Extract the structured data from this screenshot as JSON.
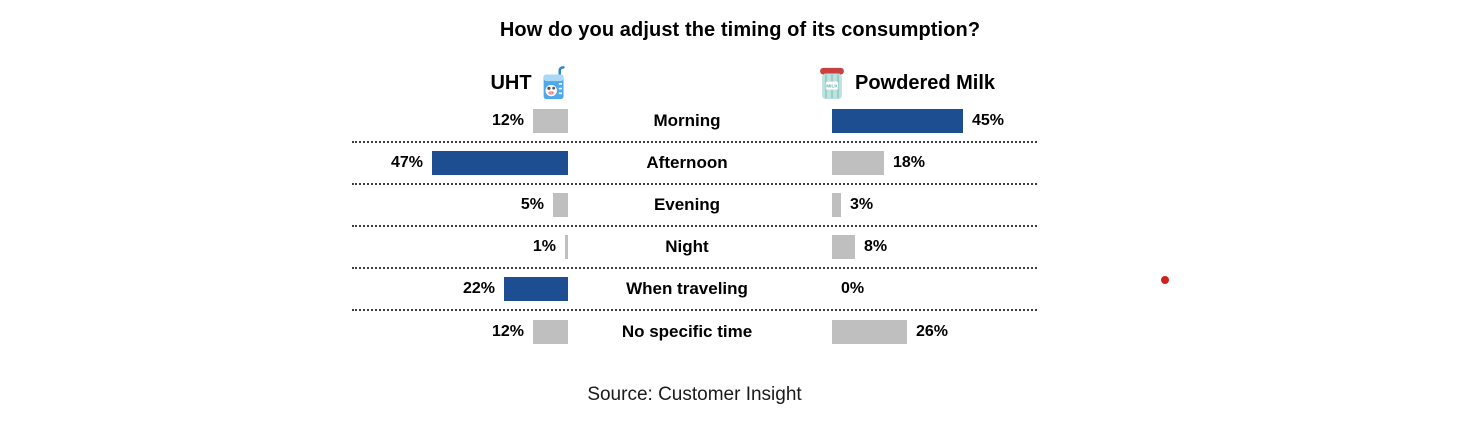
{
  "title": "How do you adjust the timing of its consumption?",
  "headers": {
    "left": "UHT",
    "right": "Powdered Milk",
    "left_icon": "milk-carton-icon",
    "right_icon": "powdered-milk-can-icon"
  },
  "source": "Source: Customer Insight",
  "colors": {
    "highlight": "#1D4E91",
    "muted": "#BFBFBF",
    "separator": "#3D3D3D",
    "pointer_dot": "#CE231B"
  },
  "chart_data": {
    "type": "bar",
    "subtype": "butterfly",
    "title": "How do you adjust the timing of its consumption?",
    "categories": [
      "Morning",
      "Afternoon",
      "Evening",
      "Night",
      "When traveling",
      "No specific time"
    ],
    "series": [
      {
        "name": "UHT",
        "side": "left",
        "values": [
          12,
          47,
          5,
          1,
          22,
          12
        ],
        "highlighted": [
          false,
          true,
          false,
          false,
          true,
          false
        ]
      },
      {
        "name": "Powdered Milk",
        "side": "right",
        "values": [
          45,
          18,
          3,
          8,
          0,
          26
        ],
        "highlighted": [
          true,
          false,
          false,
          false,
          false,
          false
        ]
      }
    ],
    "value_suffix": "%",
    "value_range": [
      0,
      47
    ],
    "grid": "dotted horizontal row separators",
    "legend_position": "top",
    "source": "Source: Customer Insight"
  }
}
